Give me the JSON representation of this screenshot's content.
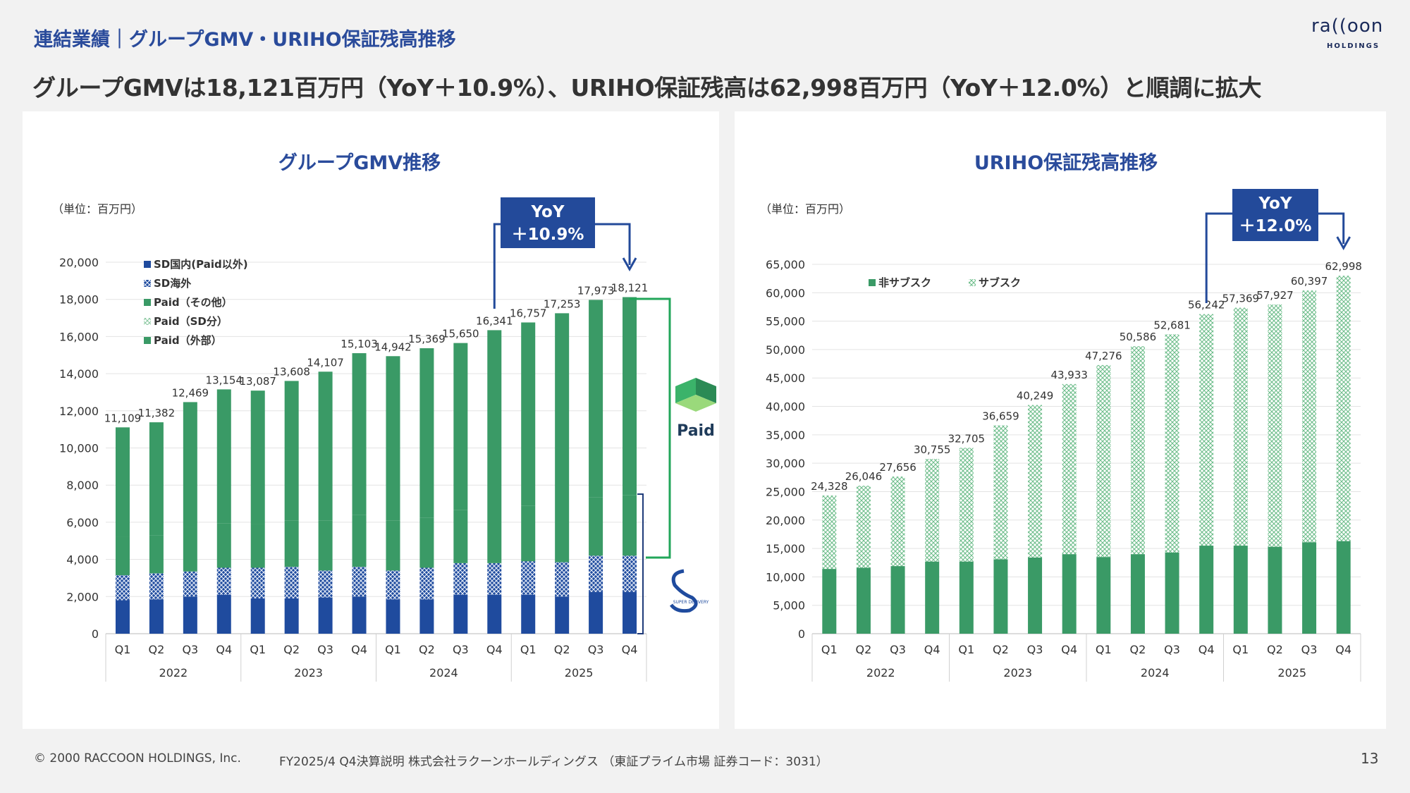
{
  "header": {
    "section": "連結業績｜グループGMV・URIHO保証残高推移",
    "headline": "グループGMVは18,121百万円（YoY＋10.9%）、URIHO保証残高は62,998百万円（YoY＋12.0%）と順調に拡大",
    "logo_text": "ra((oon",
    "logo_sub": "HOLDINGS"
  },
  "footer": {
    "copyright": "© 2000 RACCOON HOLDINGS, Inc.",
    "note": "FY2025/4 Q4決算説明 株式会社ラクーンホールディングス （東証プライム市場 証券コード：3031）",
    "page": "13"
  },
  "colors": {
    "sd_domestic": "#1f4b9e",
    "paid_other": "#3a9a66",
    "paid_sd": "#a9d6b9",
    "uriho_non_sub": "#3a9a66",
    "uriho_sub": "#b7dfc4",
    "accent_blue": "#234a9a",
    "bracket_green": "#22a65a"
  },
  "icons": {
    "paid_logo_text": "Paid",
    "sd_logo_text": "SUPER DELIVERY"
  },
  "chart_data": [
    {
      "type": "bar",
      "stacked": true,
      "title": "グループGMV推移",
      "unit_label": "（単位：百万円）",
      "ylim": [
        0,
        20000
      ],
      "yticks": [
        0,
        2000,
        4000,
        6000,
        8000,
        10000,
        12000,
        14000,
        16000,
        18000,
        20000
      ],
      "categories": [
        "Q1",
        "Q2",
        "Q3",
        "Q4",
        "Q1",
        "Q2",
        "Q3",
        "Q4",
        "Q1",
        "Q2",
        "Q3",
        "Q4",
        "Q1",
        "Q2",
        "Q3",
        "Q4"
      ],
      "years": [
        "2022",
        "2023",
        "2024",
        "2025"
      ],
      "series": [
        {
          "name": "SD国内(Paid以外)",
          "values": [
            1800,
            1850,
            2000,
            2100,
            1900,
            1900,
            1950,
            2000,
            1850,
            1850,
            2100,
            2100,
            2100,
            2000,
            2250,
            2250
          ]
        },
        {
          "name": "SD海外",
          "values": [
            1350,
            1400,
            1350,
            1450,
            1650,
            1700,
            1450,
            1600,
            1550,
            1700,
            1700,
            1700,
            1800,
            1850,
            1950,
            1950
          ]
        },
        {
          "name": "Paid（その他）",
          "values": [
            2050,
            2050,
            2400,
            2400,
            2350,
            2500,
            2700,
            2800,
            2700,
            2700,
            2850,
            3050,
            3000,
            3000,
            3150,
            3250
          ]
        },
        {
          "name": "Paid（SD分）",
          "values": [
            0,
            0,
            0,
            0,
            0,
            0,
            0,
            0,
            0,
            0,
            0,
            0,
            0,
            0,
            0,
            0
          ]
        },
        {
          "name": "Paid（外部）",
          "values": [
            5909,
            6082,
            6719,
            7204,
            7187,
            7508,
            8007,
            8703,
            8842,
            9119,
            9000,
            9491,
            9857,
            10403,
            10623,
            10671
          ]
        }
      ],
      "totals": [
        11109,
        11382,
        12469,
        13154,
        13087,
        13608,
        14107,
        15103,
        14942,
        15369,
        15650,
        16341,
        16757,
        17253,
        17973,
        18121
      ],
      "totals_labels": [
        "11,109",
        "11,382",
        "12,469",
        "13,154",
        "13,087",
        "13,608",
        "14,107",
        "15,103",
        "14,942",
        "15,369",
        "15,650",
        "16,341",
        "16,757",
        "17,253",
        "17,973",
        "18,121"
      ],
      "legend": "top-left",
      "grid": true,
      "annotation": {
        "line1": "YoY",
        "line2": "＋10.9%"
      }
    },
    {
      "type": "bar",
      "stacked": true,
      "title": "URIHO保証残高推移",
      "unit_label": "（単位：百万円）",
      "ylim": [
        0,
        65000
      ],
      "yticks": [
        0,
        5000,
        10000,
        15000,
        20000,
        25000,
        30000,
        35000,
        40000,
        45000,
        50000,
        55000,
        60000,
        65000
      ],
      "categories": [
        "Q1",
        "Q2",
        "Q3",
        "Q4",
        "Q1",
        "Q2",
        "Q3",
        "Q4",
        "Q1",
        "Q2",
        "Q3",
        "Q4",
        "Q1",
        "Q2",
        "Q3",
        "Q4"
      ],
      "years": [
        "2022",
        "2023",
        "2024",
        "2025"
      ],
      "series": [
        {
          "name": "非サブスク",
          "values": [
            11400,
            11600,
            11900,
            12700,
            12700,
            13100,
            13400,
            14000,
            13500,
            14000,
            14300,
            15500,
            15500,
            15300,
            16100,
            16300
          ]
        },
        {
          "name": "サブスク",
          "values": [
            12928,
            14446,
            15756,
            18055,
            20005,
            23559,
            26849,
            29933,
            33776,
            36586,
            38381,
            40742,
            41869,
            42627,
            44297,
            46698
          ]
        }
      ],
      "totals": [
        24328,
        26046,
        27656,
        30755,
        32705,
        36659,
        40249,
        43933,
        47276,
        50586,
        52681,
        56242,
        57369,
        57927,
        60397,
        62998
      ],
      "totals_labels": [
        "24,328",
        "26,046",
        "27,656",
        "30,755",
        "32,705",
        "36,659",
        "40,249",
        "43,933",
        "47,276",
        "50,586",
        "52,681",
        "56,242",
        "57,369",
        "57,927",
        "60,397",
        "62,998"
      ],
      "legend": "top-left",
      "grid": true,
      "annotation": {
        "line1": "YoY",
        "line2": "＋12.0%"
      }
    }
  ]
}
